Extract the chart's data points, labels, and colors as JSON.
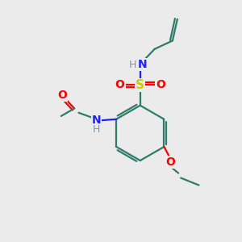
{
  "background_color": "#ebebeb",
  "bond_color": "#2d7d6a",
  "N_color": "#2020ff",
  "O_color": "#ff0000",
  "S_color": "#cccc00",
  "H_color": "#7a9a9a",
  "line_width": 1.6,
  "font_size": 10,
  "fig_size": [
    3.0,
    3.0
  ],
  "dpi": 100,
  "xlim": [
    0,
    10
  ],
  "ylim": [
    0,
    10
  ]
}
